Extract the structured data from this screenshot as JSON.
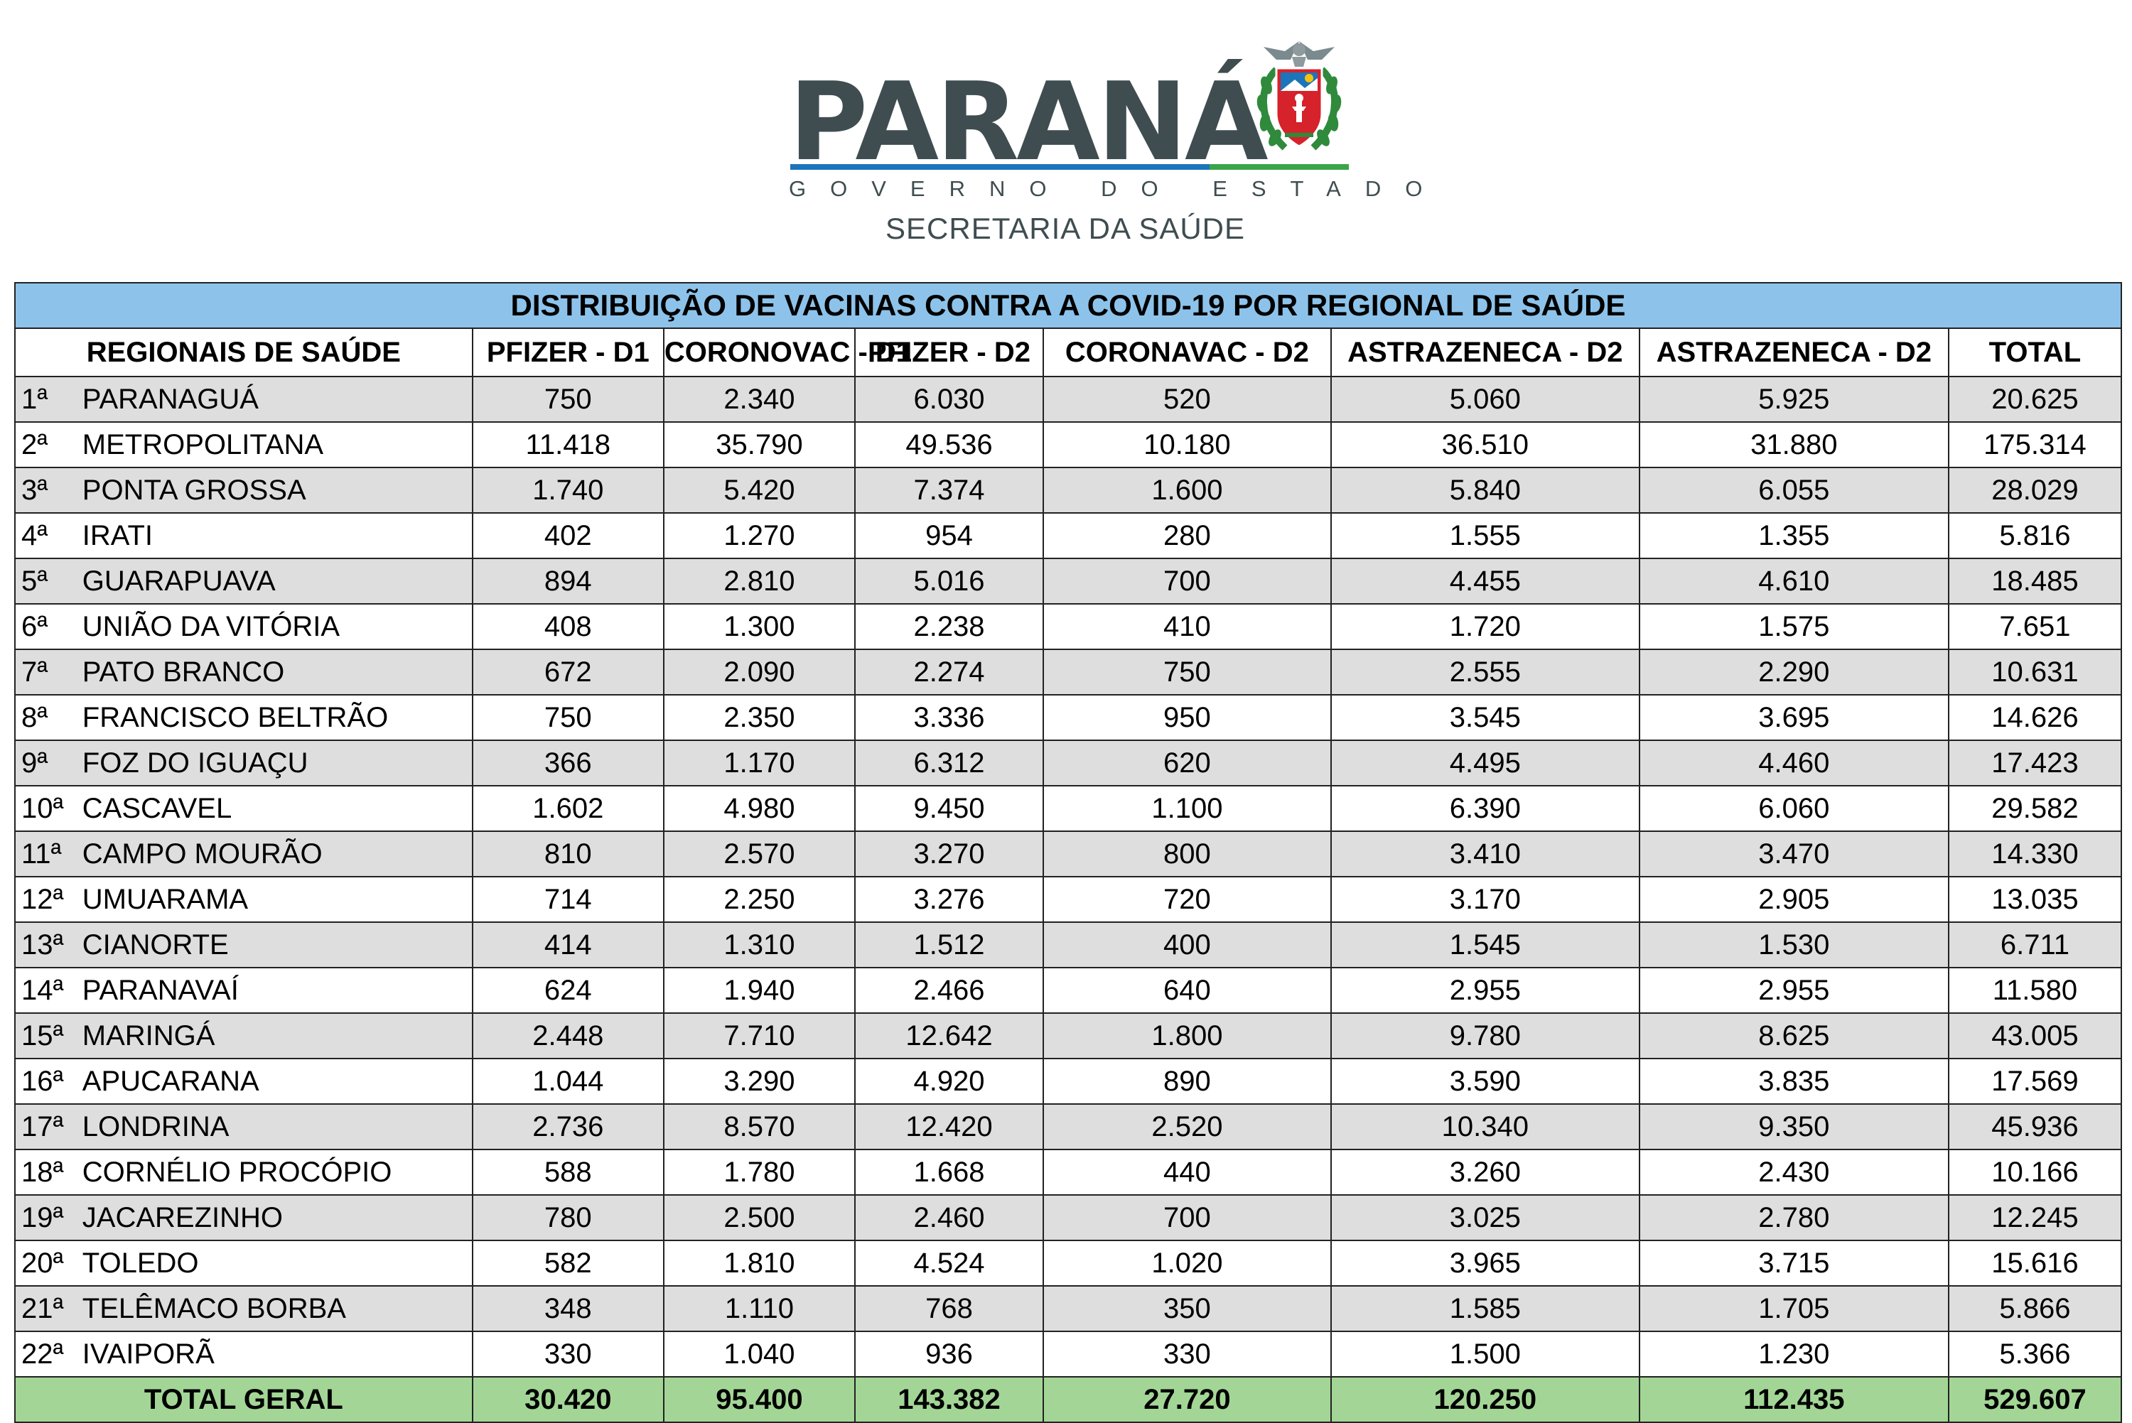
{
  "header": {
    "brand": "PARANÁ",
    "subtitle": "GOVERNO DO ESTADO",
    "department": "SECRETARIA DA SAÚDE"
  },
  "table": {
    "title": "DISTRIBUIÇÃO DE VACINAS CONTRA A COVID-19 POR REGIONAL DE SAÚDE",
    "columns": [
      "REGIONAIS DE SAÚDE",
      "PFIZER - D1",
      "CORONOVAC - D1",
      "PFIZER - D2",
      "CORONAVAC - D2",
      "ASTRAZENECA - D2",
      "ASTRAZENECA - D2",
      "TOTAL"
    ],
    "rows": [
      {
        "num": "1ª",
        "name": "PARANAGUÁ",
        "values": [
          "750",
          "2.340",
          "6.030",
          "520",
          "5.060",
          "5.925",
          "20.625"
        ]
      },
      {
        "num": "2ª",
        "name": "METROPOLITANA",
        "values": [
          "11.418",
          "35.790",
          "49.536",
          "10.180",
          "36.510",
          "31.880",
          "175.314"
        ]
      },
      {
        "num": "3ª",
        "name": "PONTA GROSSA",
        "values": [
          "1.740",
          "5.420",
          "7.374",
          "1.600",
          "5.840",
          "6.055",
          "28.029"
        ]
      },
      {
        "num": "4ª",
        "name": "IRATI",
        "values": [
          "402",
          "1.270",
          "954",
          "280",
          "1.555",
          "1.355",
          "5.816"
        ]
      },
      {
        "num": "5ª",
        "name": "GUARAPUAVA",
        "values": [
          "894",
          "2.810",
          "5.016",
          "700",
          "4.455",
          "4.610",
          "18.485"
        ]
      },
      {
        "num": "6ª",
        "name": "UNIÃO DA VITÓRIA",
        "values": [
          "408",
          "1.300",
          "2.238",
          "410",
          "1.720",
          "1.575",
          "7.651"
        ]
      },
      {
        "num": "7ª",
        "name": "PATO BRANCO",
        "values": [
          "672",
          "2.090",
          "2.274",
          "750",
          "2.555",
          "2.290",
          "10.631"
        ]
      },
      {
        "num": "8ª",
        "name": "FRANCISCO BELTRÃO",
        "values": [
          "750",
          "2.350",
          "3.336",
          "950",
          "3.545",
          "3.695",
          "14.626"
        ]
      },
      {
        "num": "9ª",
        "name": "FOZ DO IGUAÇU",
        "values": [
          "366",
          "1.170",
          "6.312",
          "620",
          "4.495",
          "4.460",
          "17.423"
        ]
      },
      {
        "num": "10ª",
        "name": "CASCAVEL",
        "values": [
          "1.602",
          "4.980",
          "9.450",
          "1.100",
          "6.390",
          "6.060",
          "29.582"
        ]
      },
      {
        "num": "11ª",
        "name": "CAMPO MOURÃO",
        "values": [
          "810",
          "2.570",
          "3.270",
          "800",
          "3.410",
          "3.470",
          "14.330"
        ]
      },
      {
        "num": "12ª",
        "name": "UMUARAMA",
        "values": [
          "714",
          "2.250",
          "3.276",
          "720",
          "3.170",
          "2.905",
          "13.035"
        ]
      },
      {
        "num": "13ª",
        "name": "CIANORTE",
        "values": [
          "414",
          "1.310",
          "1.512",
          "400",
          "1.545",
          "1.530",
          "6.711"
        ]
      },
      {
        "num": "14ª",
        "name": "PARANAVAÍ",
        "values": [
          "624",
          "1.940",
          "2.466",
          "640",
          "2.955",
          "2.955",
          "11.580"
        ]
      },
      {
        "num": "15ª",
        "name": "MARINGÁ",
        "values": [
          "2.448",
          "7.710",
          "12.642",
          "1.800",
          "9.780",
          "8.625",
          "43.005"
        ]
      },
      {
        "num": "16ª",
        "name": "APUCARANA",
        "values": [
          "1.044",
          "3.290",
          "4.920",
          "890",
          "3.590",
          "3.835",
          "17.569"
        ]
      },
      {
        "num": "17ª",
        "name": "LONDRINA",
        "values": [
          "2.736",
          "8.570",
          "12.420",
          "2.520",
          "10.340",
          "9.350",
          "45.936"
        ]
      },
      {
        "num": "18ª",
        "name": "CORNÉLIO PROCÓPIO",
        "values": [
          "588",
          "1.780",
          "1.668",
          "440",
          "3.260",
          "2.430",
          "10.166"
        ]
      },
      {
        "num": "19ª",
        "name": "JACAREZINHO",
        "values": [
          "780",
          "2.500",
          "2.460",
          "700",
          "3.025",
          "2.780",
          "12.245"
        ]
      },
      {
        "num": "20ª",
        "name": "TOLEDO",
        "values": [
          "582",
          "1.810",
          "4.524",
          "1.020",
          "3.965",
          "3.715",
          "15.616"
        ]
      },
      {
        "num": "21ª",
        "name": "TELÊMACO BORBA",
        "values": [
          "348",
          "1.110",
          "768",
          "350",
          "1.585",
          "1.705",
          "5.866"
        ]
      },
      {
        "num": "22ª",
        "name": "IVAIPORÃ",
        "values": [
          "330",
          "1.040",
          "936",
          "330",
          "1.500",
          "1.230",
          "5.366"
        ]
      }
    ],
    "total": {
      "label": "TOTAL GERAL",
      "values": [
        "30.420",
        "95.400",
        "143.382",
        "27.720",
        "120.250",
        "112.435",
        "529.607"
      ]
    }
  },
  "colors": {
    "title_bg": "#8dc3ea",
    "odd_row_bg": "#dedede",
    "total_bg": "#a3d696",
    "brand_text": "#3f4d51",
    "bar_blue": "#1c74bb",
    "bar_green": "#3aa54a"
  }
}
